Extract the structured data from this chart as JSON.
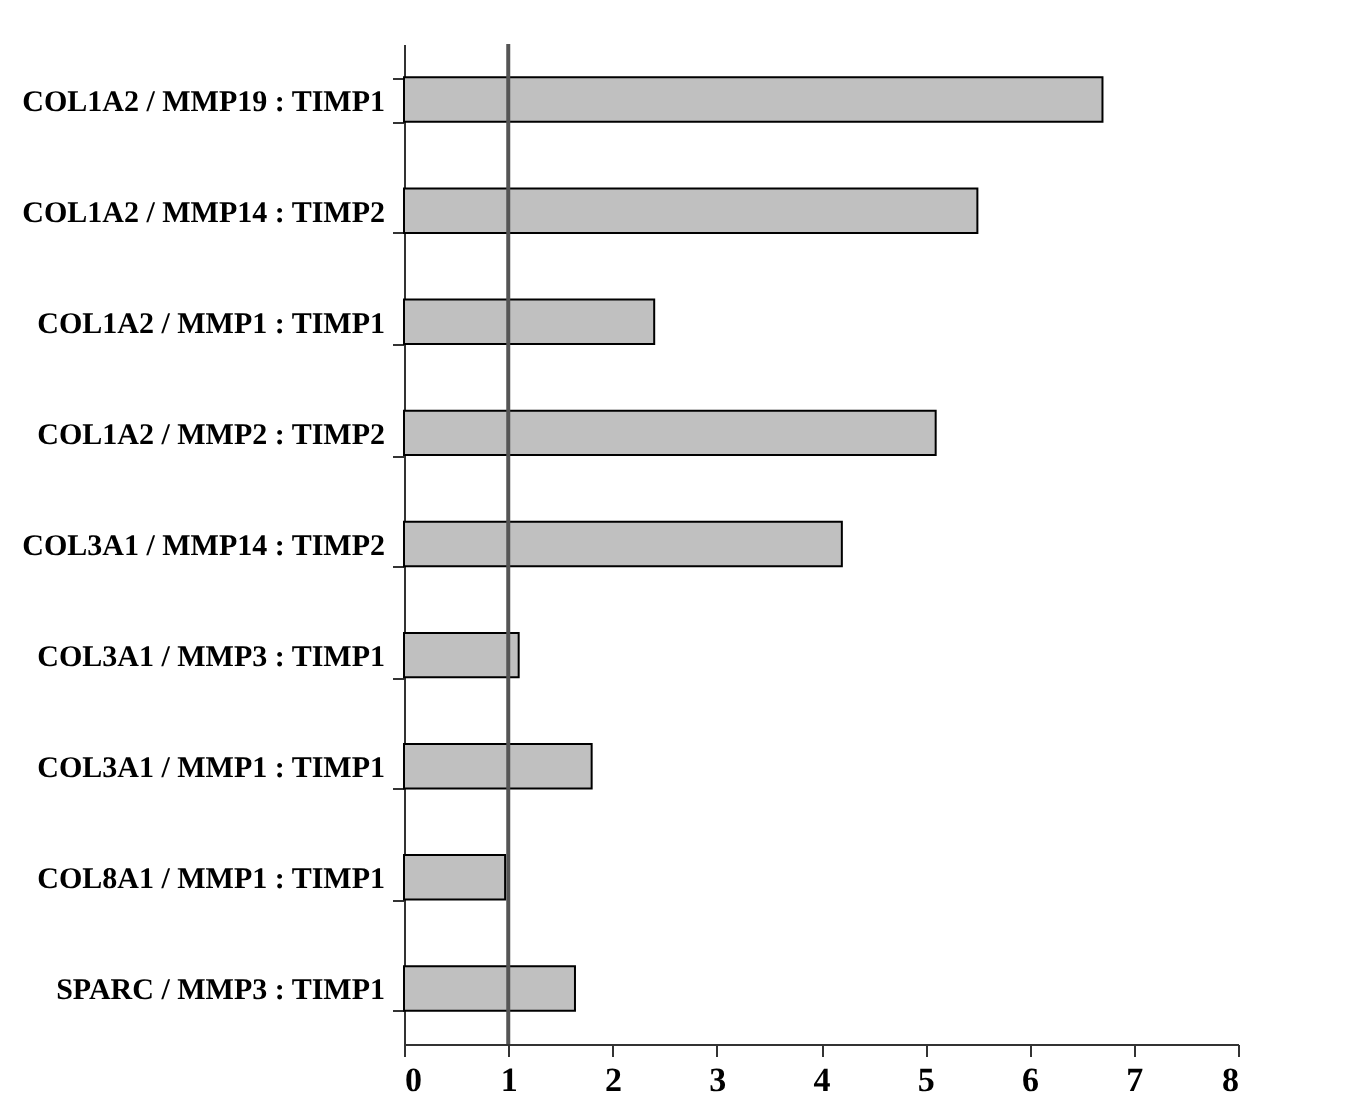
{
  "chart_data": {
    "type": "bar",
    "orientation": "horizontal",
    "categories": [
      "COL1A2 / MMP19 : TIMP1",
      "COL1A2 / MMP14 : TIMP2",
      "COL1A2 / MMP1 : TIMP1",
      "COL1A2 / MMP2 : TIMP2",
      "COL3A1 / MMP14 : TIMP2",
      "COL3A1 / MMP3 : TIMP1",
      "COL3A1 / MMP1 : TIMP1",
      "COL8A1 / MMP1 : TIMP1",
      "SPARC  / MMP3 : TIMP1"
    ],
    "values": [
      6.7,
      5.5,
      2.4,
      5.1,
      4.2,
      1.1,
      1.8,
      0.97,
      1.64
    ],
    "color": "#c0c0c0",
    "xlim": [
      0,
      8
    ],
    "xticks": [
      0,
      1,
      2,
      3,
      4,
      5,
      6,
      7,
      8
    ],
    "ref_lines": [
      {
        "axis": "x",
        "value": 1,
        "color": "#555555"
      }
    ],
    "grid": false
  }
}
